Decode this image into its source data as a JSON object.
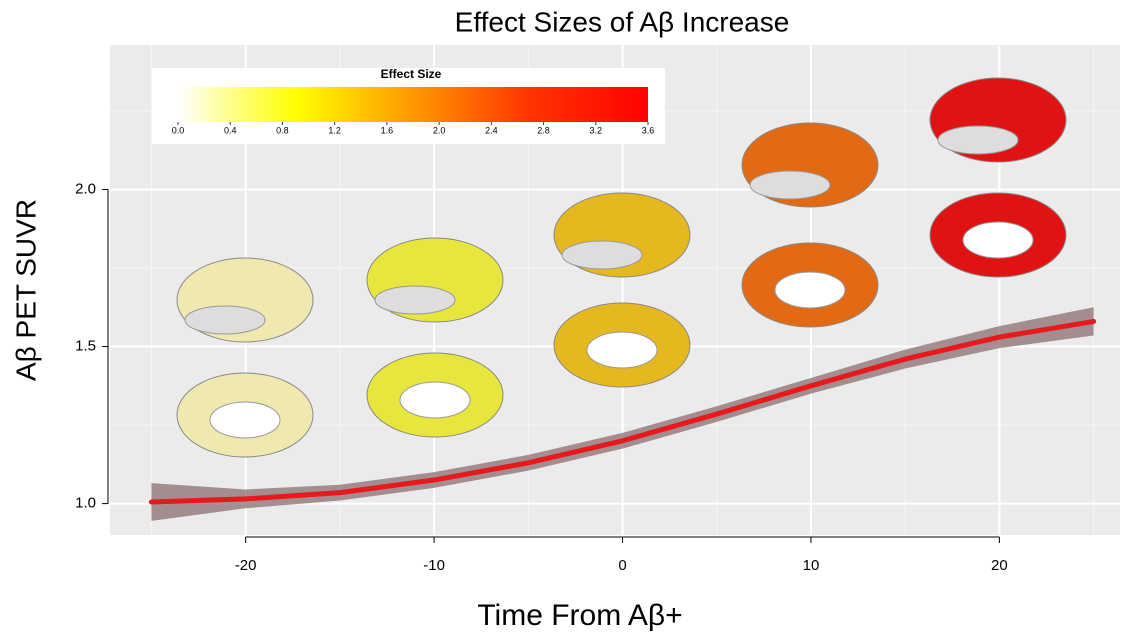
{
  "chart_data": {
    "type": "line",
    "title": "Effect Sizes of Aβ Increase",
    "xlabel": "Time From Aβ+",
    "ylabel": "Aβ PET SUVR",
    "x": [
      -25,
      -20,
      -15,
      -10,
      -5,
      0,
      5,
      10,
      15,
      20,
      25
    ],
    "values": [
      1.005,
      1.015,
      1.035,
      1.075,
      1.13,
      1.2,
      1.285,
      1.375,
      1.46,
      1.53,
      1.58
    ],
    "band_lower": [
      0.945,
      0.985,
      1.01,
      1.05,
      1.105,
      1.175,
      1.26,
      1.35,
      1.43,
      1.495,
      1.535
    ],
    "band_upper": [
      1.065,
      1.045,
      1.06,
      1.1,
      1.155,
      1.225,
      1.31,
      1.4,
      1.49,
      1.565,
      1.625
    ],
    "color": "#e8191c",
    "band_color": "#8a6e70",
    "xlim": [
      -27.2,
      26.4
    ],
    "ylim": [
      0.9,
      2.46
    ],
    "xticks": [
      -20,
      -10,
      0,
      10,
      20
    ],
    "yticks": [
      {
        "value": 1.0,
        "label": "1.0"
      },
      1.5,
      {
        "value": 2.0,
        "label": "2.0"
      }
    ],
    "grid": true,
    "colorbar": {
      "title": "Effect Size",
      "lim": [
        0,
        3.6
      ],
      "colors": [
        "#ffffff",
        "#ffff00",
        "#ff9900",
        "#ff3300",
        "#ff0000"
      ],
      "ticks": [
        {
          "value": 0,
          "label": "0.0"
        },
        0.4,
        0.8,
        1.2,
        1.6,
        {
          "value": 2.0,
          "label": "2.0"
        },
        2.4,
        2.8,
        3.2,
        3.6
      ]
    }
  }
}
